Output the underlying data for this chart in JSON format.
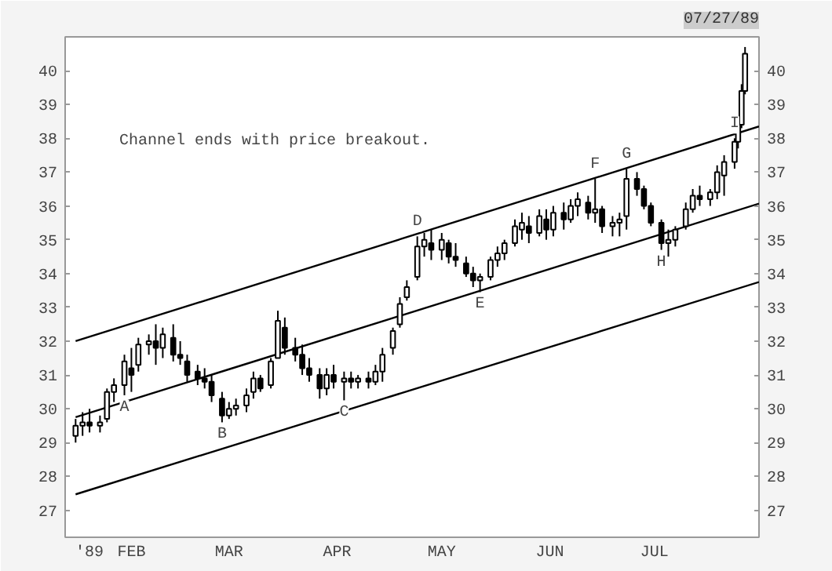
{
  "chart_data": {
    "type": "candlestick",
    "title": "07/27/89",
    "color": "#000000",
    "x": [
      "1989-01-16",
      "1989-01-18",
      "1989-01-20",
      "1989-01-23",
      "1989-01-25",
      "1989-01-27",
      "1989-01-30",
      "1989-02-01",
      "1989-02-03",
      "1989-02-06",
      "1989-02-08",
      "1989-02-10",
      "1989-02-13",
      "1989-02-15",
      "1989-02-17",
      "1989-02-20",
      "1989-02-22",
      "1989-02-24",
      "1989-02-27",
      "1989-03-01",
      "1989-03-03",
      "1989-03-06",
      "1989-03-08",
      "1989-03-10",
      "1989-03-13",
      "1989-03-15",
      "1989-03-17",
      "1989-03-20",
      "1989-03-22",
      "1989-03-24",
      "1989-03-27",
      "1989-03-29",
      "1989-03-31",
      "1989-04-03",
      "1989-04-05",
      "1989-04-07",
      "1989-04-10",
      "1989-04-12",
      "1989-04-14",
      "1989-04-17",
      "1989-04-19",
      "1989-04-21",
      "1989-04-24",
      "1989-04-26",
      "1989-04-28",
      "1989-05-01",
      "1989-05-03",
      "1989-05-05",
      "1989-05-08",
      "1989-05-10",
      "1989-05-12",
      "1989-05-15",
      "1989-05-17",
      "1989-05-19",
      "1989-05-22",
      "1989-05-24",
      "1989-05-26",
      "1989-05-29",
      "1989-05-31",
      "1989-06-02",
      "1989-06-05",
      "1989-06-07",
      "1989-06-09",
      "1989-06-12",
      "1989-06-14",
      "1989-06-16",
      "1989-06-19",
      "1989-06-21",
      "1989-06-23",
      "1989-06-26",
      "1989-06-28",
      "1989-06-30",
      "1989-07-03",
      "1989-07-05",
      "1989-07-07",
      "1989-07-10",
      "1989-07-12",
      "1989-07-14",
      "1989-07-17",
      "1989-07-19",
      "1989-07-21",
      "1989-07-24",
      "1989-07-25",
      "1989-07-26",
      "1989-07-27"
    ],
    "ohlc": [
      [
        29.2,
        29.7,
        29.0,
        29.5
      ],
      [
        29.5,
        29.9,
        29.2,
        29.6
      ],
      [
        29.6,
        30.0,
        29.3,
        29.5
      ],
      [
        29.5,
        29.8,
        29.3,
        29.6
      ],
      [
        29.7,
        30.6,
        29.6,
        30.5
      ],
      [
        30.5,
        30.9,
        30.2,
        30.7
      ],
      [
        30.7,
        31.6,
        30.4,
        31.4
      ],
      [
        31.2,
        31.8,
        30.5,
        31.0
      ],
      [
        31.3,
        32.1,
        31.1,
        31.9
      ],
      [
        31.9,
        32.2,
        31.6,
        32.0
      ],
      [
        32.0,
        32.5,
        31.3,
        31.8
      ],
      [
        31.8,
        32.4,
        31.5,
        32.2
      ],
      [
        32.1,
        32.5,
        31.4,
        31.6
      ],
      [
        31.6,
        32.0,
        31.3,
        31.5
      ],
      [
        31.4,
        31.6,
        30.8,
        31.0
      ],
      [
        31.1,
        31.3,
        30.7,
        30.9
      ],
      [
        30.9,
        31.2,
        30.6,
        30.8
      ],
      [
        30.8,
        31.0,
        30.2,
        30.4
      ],
      [
        30.3,
        30.5,
        29.6,
        29.8
      ],
      [
        29.8,
        30.2,
        29.7,
        30.0
      ],
      [
        30.0,
        30.3,
        29.8,
        30.1
      ],
      [
        30.1,
        30.6,
        29.9,
        30.4
      ],
      [
        30.5,
        31.1,
        30.3,
        30.9
      ],
      [
        30.9,
        31.0,
        30.5,
        30.6
      ],
      [
        30.7,
        31.5,
        30.6,
        31.4
      ],
      [
        31.5,
        32.9,
        31.5,
        32.6
      ],
      [
        32.4,
        32.7,
        31.6,
        31.8
      ],
      [
        31.8,
        32.1,
        31.4,
        31.6
      ],
      [
        31.6,
        31.9,
        31.0,
        31.2
      ],
      [
        31.2,
        31.5,
        30.8,
        31.0
      ],
      [
        31.0,
        31.2,
        30.3,
        30.6
      ],
      [
        30.6,
        31.2,
        30.4,
        31.0
      ],
      [
        31.0,
        31.3,
        30.6,
        30.8
      ],
      [
        30.8,
        31.1,
        30.25,
        30.9
      ],
      [
        30.9,
        31.1,
        30.6,
        30.8
      ],
      [
        30.8,
        31.0,
        30.6,
        30.9
      ],
      [
        30.9,
        31.1,
        30.6,
        30.8
      ],
      [
        30.8,
        31.3,
        30.7,
        31.1
      ],
      [
        31.1,
        31.8,
        30.8,
        31.6
      ],
      [
        31.8,
        32.4,
        31.6,
        32.3
      ],
      [
        32.5,
        33.3,
        32.4,
        33.1
      ],
      [
        33.3,
        33.8,
        33.2,
        33.6
      ],
      [
        33.9,
        35.1,
        33.8,
        34.8
      ],
      [
        34.8,
        35.2,
        34.5,
        35.0
      ],
      [
        34.9,
        35.3,
        34.4,
        34.7
      ],
      [
        34.7,
        35.2,
        34.4,
        35.0
      ],
      [
        34.9,
        35.0,
        34.3,
        34.5
      ],
      [
        34.5,
        34.9,
        34.2,
        34.4
      ],
      [
        34.3,
        34.5,
        33.9,
        34.0
      ],
      [
        34.0,
        34.2,
        33.6,
        33.8
      ],
      [
        33.8,
        34.0,
        33.45,
        33.9
      ],
      [
        33.9,
        34.5,
        33.8,
        34.4
      ],
      [
        34.4,
        34.8,
        34.2,
        34.6
      ],
      [
        34.6,
        35.0,
        34.4,
        34.9
      ],
      [
        34.9,
        35.6,
        34.8,
        35.4
      ],
      [
        35.3,
        35.8,
        35.0,
        35.5
      ],
      [
        35.4,
        35.7,
        34.9,
        35.2
      ],
      [
        35.2,
        35.9,
        35.1,
        35.7
      ],
      [
        35.6,
        35.9,
        35.0,
        35.3
      ],
      [
        35.3,
        36.0,
        35.1,
        35.8
      ],
      [
        35.8,
        36.1,
        35.3,
        35.6
      ],
      [
        35.6,
        36.2,
        35.5,
        36.0
      ],
      [
        36.0,
        36.4,
        35.7,
        36.2
      ],
      [
        36.1,
        36.3,
        35.6,
        35.8
      ],
      [
        35.8,
        36.8,
        35.5,
        35.9
      ],
      [
        35.9,
        36.0,
        35.2,
        35.4
      ],
      [
        35.4,
        35.7,
        35.1,
        35.5
      ],
      [
        35.5,
        35.8,
        35.1,
        35.6
      ],
      [
        35.7,
        37.1,
        35.3,
        36.8
      ],
      [
        36.8,
        37.0,
        36.3,
        36.5
      ],
      [
        36.5,
        36.6,
        35.9,
        36.0
      ],
      [
        36.0,
        36.1,
        35.4,
        35.5
      ],
      [
        35.5,
        35.6,
        34.7,
        34.9
      ],
      [
        34.9,
        35.3,
        34.5,
        35.0
      ],
      [
        35.0,
        35.4,
        34.8,
        35.3
      ],
      [
        35.4,
        36.1,
        35.3,
        35.9
      ],
      [
        35.9,
        36.5,
        35.8,
        36.3
      ],
      [
        36.3,
        36.6,
        36.0,
        36.2
      ],
      [
        36.2,
        36.5,
        36.0,
        36.4
      ],
      [
        36.4,
        37.2,
        36.2,
        37.0
      ],
      [
        36.9,
        37.5,
        36.3,
        37.3
      ],
      [
        37.3,
        38.0,
        37.1,
        37.9
      ],
      [
        37.9,
        38.6,
        37.7,
        38.4
      ],
      [
        38.4,
        39.6,
        38.3,
        39.4
      ],
      [
        39.4,
        40.7,
        39.3,
        40.5
      ]
    ],
    "series": [
      {
        "type": "line",
        "color": "#000000",
        "x": [
          "1989-01-16",
          "1989-07-31"
        ],
        "values": [
          32.0,
          38.35
        ]
      },
      {
        "type": "line",
        "color": "#000000",
        "x": [
          "1989-01-16",
          "1989-07-31"
        ],
        "values": [
          29.75,
          36.07
        ]
      },
      {
        "type": "line",
        "color": "#000000",
        "x": [
          "1989-01-16",
          "1989-07-31"
        ],
        "values": [
          27.47,
          33.75
        ]
      }
    ],
    "xlim": [
      "1989-01-13",
      "1989-07-31"
    ],
    "xticks": [
      {
        "value": "1989-01-20",
        "label": "'89"
      },
      {
        "value": "1989-02-01",
        "label": "FEB"
      },
      {
        "value": "1989-03-01",
        "label": "MAR"
      },
      {
        "value": "1989-04-01",
        "label": "APR"
      },
      {
        "value": "1989-05-01",
        "label": "MAY"
      },
      {
        "value": "1989-06-01",
        "label": "JUN"
      },
      {
        "value": "1989-07-01",
        "label": "JUL"
      }
    ],
    "ylim": [
      26.2,
      41.0
    ],
    "yticks": [
      27,
      28,
      29,
      30,
      31,
      32,
      33,
      34,
      35,
      36,
      37,
      38,
      39,
      40
    ],
    "y2lim": [
      26.2,
      41.0
    ],
    "y2ticks": [
      27,
      28,
      29,
      30,
      31,
      32,
      33,
      34,
      35,
      36,
      37,
      38,
      39,
      40
    ],
    "grid": false,
    "annotations": [
      "Channel ends with price breakout.",
      {
        "text": "A",
        "x": "1989-01-30",
        "y": 30.4
      },
      {
        "text": "B",
        "x": "1989-02-27",
        "y": 29.6
      },
      {
        "text": "C",
        "x": "1989-04-03",
        "y": 30.25
      },
      {
        "text": "D",
        "x": "1989-04-24",
        "y": 35.1
      },
      {
        "text": "E",
        "x": "1989-05-12",
        "y": 33.45
      },
      {
        "text": "F",
        "x": "1989-06-14",
        "y": 36.8
      },
      {
        "text": "G",
        "x": "1989-06-23",
        "y": 37.1
      },
      {
        "text": "H",
        "x": "1989-07-03",
        "y": 34.7
      },
      {
        "text": "I",
        "x": "1989-07-24",
        "y": 38.0
      }
    ]
  }
}
